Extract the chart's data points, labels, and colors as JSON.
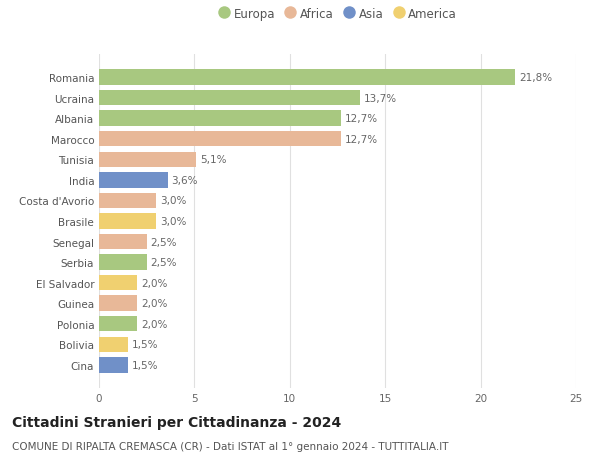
{
  "countries": [
    "Romania",
    "Ucraina",
    "Albania",
    "Marocco",
    "Tunisia",
    "India",
    "Costa d'Avorio",
    "Brasile",
    "Senegal",
    "Serbia",
    "El Salvador",
    "Guinea",
    "Polonia",
    "Bolivia",
    "Cina"
  ],
  "values": [
    21.8,
    13.7,
    12.7,
    12.7,
    5.1,
    3.6,
    3.0,
    3.0,
    2.5,
    2.5,
    2.0,
    2.0,
    2.0,
    1.5,
    1.5
  ],
  "labels": [
    "21,8%",
    "13,7%",
    "12,7%",
    "12,7%",
    "5,1%",
    "3,6%",
    "3,0%",
    "3,0%",
    "2,5%",
    "2,5%",
    "2,0%",
    "2,0%",
    "2,0%",
    "1,5%",
    "1,5%"
  ],
  "continents": [
    "Europa",
    "Europa",
    "Europa",
    "Africa",
    "Africa",
    "Asia",
    "Africa",
    "America",
    "Africa",
    "Europa",
    "America",
    "Africa",
    "Europa",
    "America",
    "Asia"
  ],
  "colors": {
    "Europa": "#a8c880",
    "Africa": "#e8b898",
    "Asia": "#7090c8",
    "America": "#f0d070"
  },
  "legend_order": [
    "Europa",
    "Africa",
    "Asia",
    "America"
  ],
  "title": "Cittadini Stranieri per Cittadinanza - 2024",
  "subtitle": "COMUNE DI RIPALTA CREMASCA (CR) - Dati ISTAT al 1° gennaio 2024 - TUTTITALIA.IT",
  "xlim": [
    0,
    25
  ],
  "xticks": [
    0,
    5,
    10,
    15,
    20,
    25
  ],
  "background_color": "#ffffff",
  "grid_color": "#e0e0e0",
  "bar_height": 0.75,
  "label_fontsize": 7.5,
  "tick_fontsize": 7.5,
  "title_fontsize": 10,
  "subtitle_fontsize": 7.5,
  "legend_fontsize": 8.5
}
